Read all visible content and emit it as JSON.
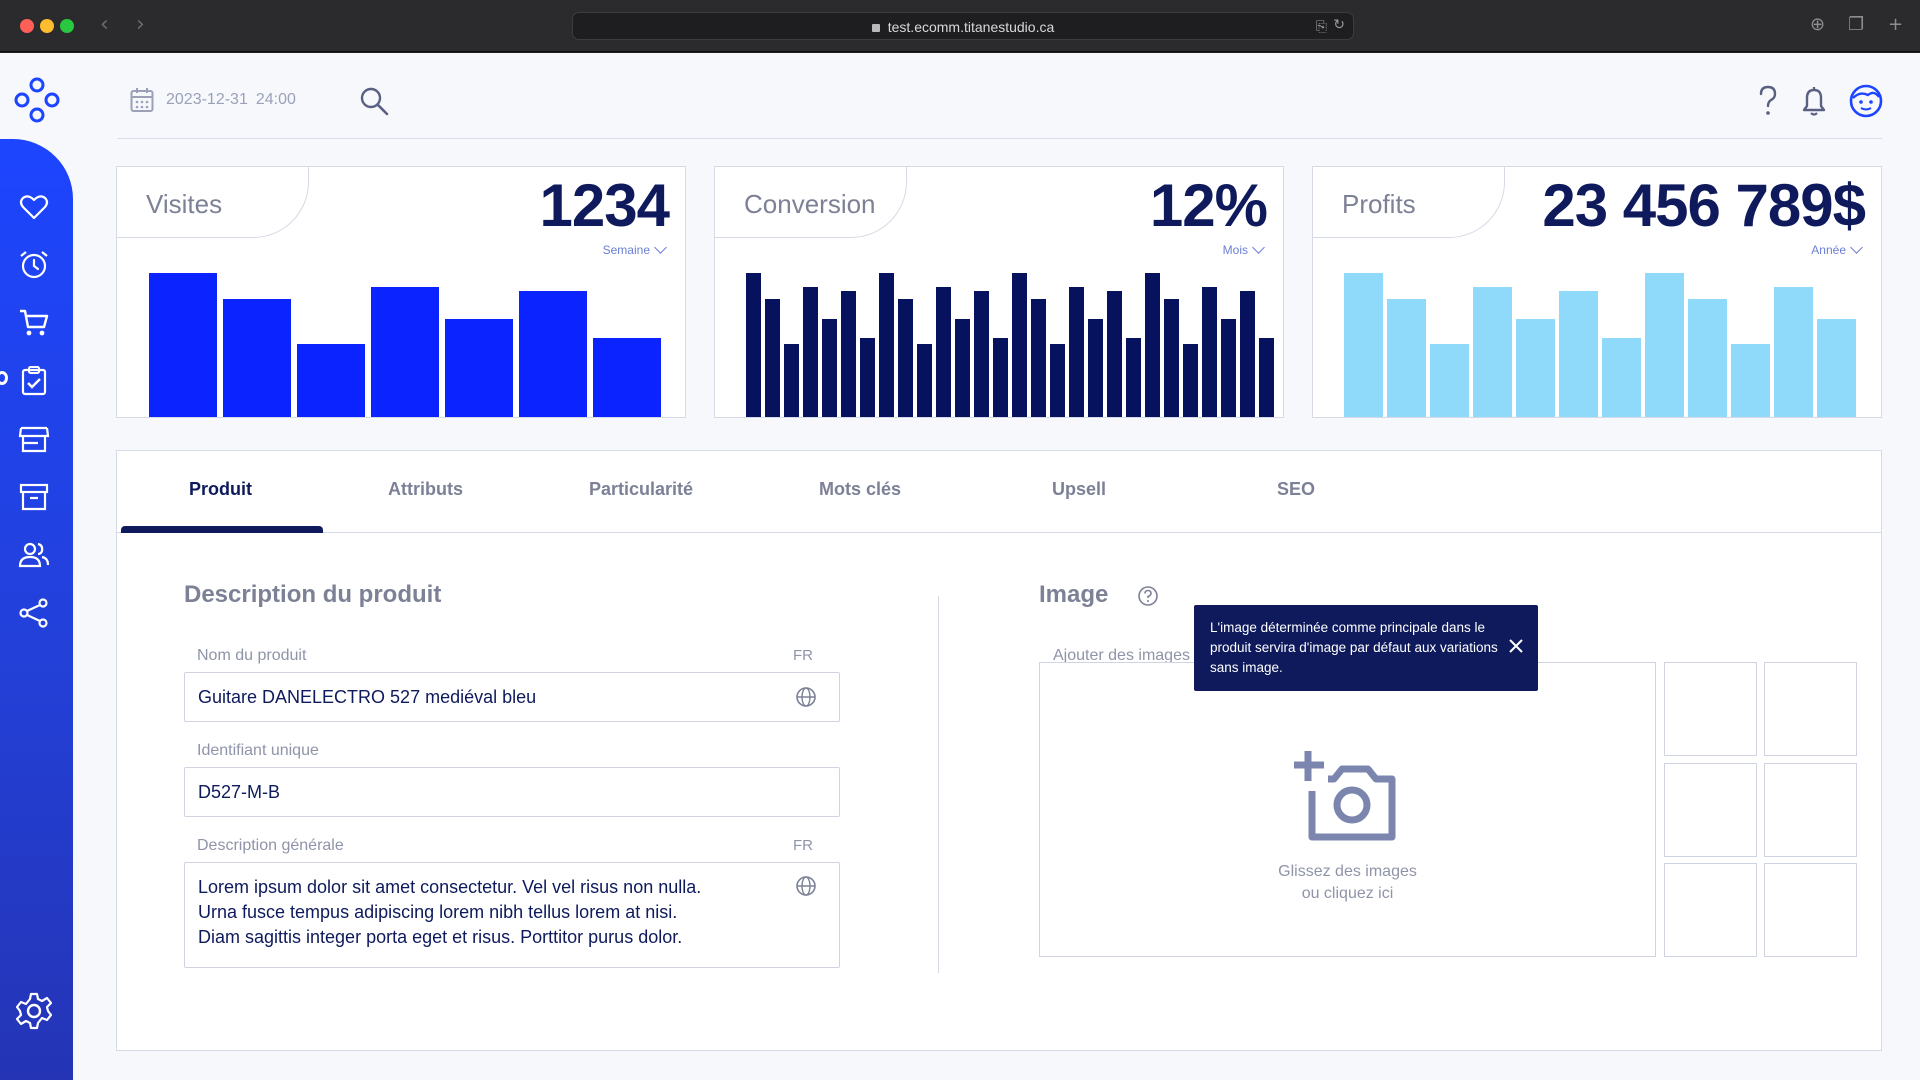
{
  "browser": {
    "url": "test.ecomm.titanestudio.ca"
  },
  "topbar": {
    "date": "2023-12-31",
    "time": "24:00"
  },
  "cards": [
    {
      "label": "Visites",
      "value": "1234",
      "period": "Semaine",
      "color": "#0a23ff"
    },
    {
      "label": "Conversion",
      "value": "12%",
      "period": "Mois",
      "color": "#07125e"
    },
    {
      "label": "Profits",
      "value": "23 456 789$",
      "period": "Année",
      "color": "#8fd9fb"
    }
  ],
  "tabs": [
    "Produit",
    "Attributs",
    "Particularité",
    "Mots clés",
    "Upsell",
    "SEO"
  ],
  "description": {
    "title": "Description du produit",
    "name_label": "Nom du produit",
    "name_lang": "FR",
    "name_value": "Guitare DANELECTRO 527 mediéval bleu",
    "id_label": "Identifiant unique",
    "id_value": "D527-M-B",
    "general_label": "Description générale",
    "general_lang": "FR",
    "general_lines": [
      "Lorem ipsum dolor sit amet consectetur. Vel vel risus non nulla.",
      "Urna fusce tempus adipiscing lorem nibh tellus lorem at nisi.",
      "Diam sagittis integer porta eget et risus. Porttitor purus dolor."
    ]
  },
  "image": {
    "title": "Image",
    "add_label": "Ajouter des images",
    "drop_line1": "Glissez des images",
    "drop_line2": "ou cliquez ici",
    "tooltip": "L'image déterminée comme principale dans le produit servira d'image par défaut aux variations sans image."
  },
  "icons": {
    "sidebar": [
      "heart-icon",
      "alarm-clock-icon",
      "cart-icon",
      "clipboard-check-icon",
      "store-icon",
      "archive-icon",
      "users-icon",
      "share-icon",
      "settings-icon"
    ],
    "top": [
      "calendar-icon",
      "search-icon",
      "help-icon",
      "bell-icon",
      "user-avatar-icon"
    ]
  },
  "colors": {
    "primary": "#0e1a5c",
    "accent": "#1d45ff",
    "sidebar_gradient_end": "#2434b5"
  }
}
